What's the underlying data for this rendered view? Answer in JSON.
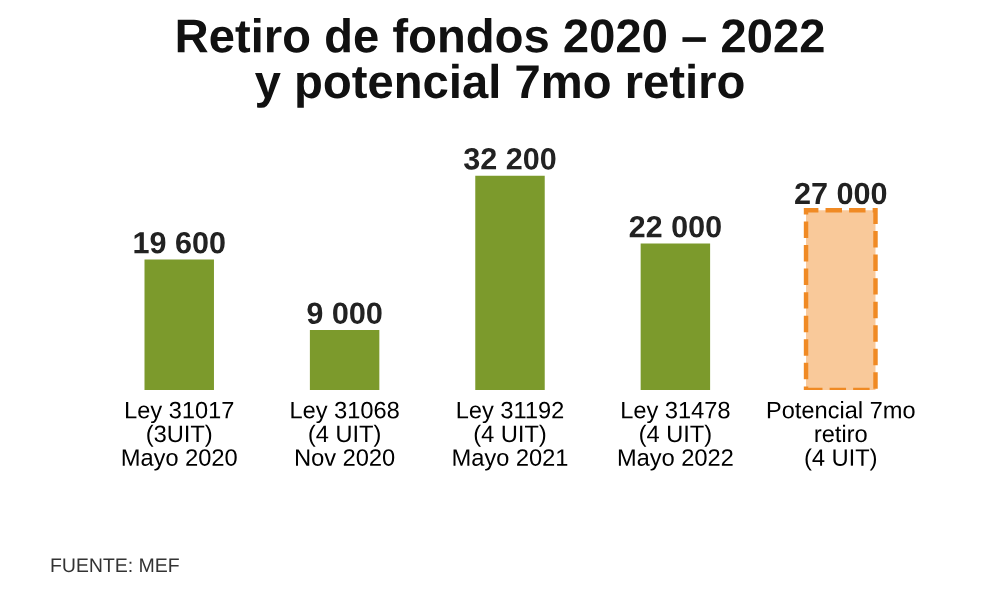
{
  "chart_data": {
    "type": "bar",
    "title": "Retiro de fondos 2020 – 2022\ny potencial 7mo retiro",
    "categories": [
      "Ley 31017\n(3UIT)\nMayo 2020",
      "Ley 31068\n(4 UIT)\nNov 2020",
      "Ley 31192\n(4 UIT)\nMayo 2021",
      "Ley 31478\n(4 UIT)\nMayo 2022",
      "Potencial 7mo\nretiro\n(4 UIT)"
    ],
    "series": [
      {
        "color": "#7c9a2c",
        "line_style": "solid",
        "values": [
          19600,
          9000,
          32200,
          22000,
          null
        ],
        "value_labels": [
          "19 600",
          "9 000",
          "32 200",
          "22 000",
          null
        ]
      },
      {
        "color": "#f9c99a",
        "line_style": "dashed",
        "values": [
          null,
          null,
          null,
          null,
          27000
        ],
        "value_labels": [
          null,
          null,
          null,
          null,
          "27 000"
        ]
      }
    ],
    "annotations": [
      "FUENTE: MEF"
    ]
  }
}
